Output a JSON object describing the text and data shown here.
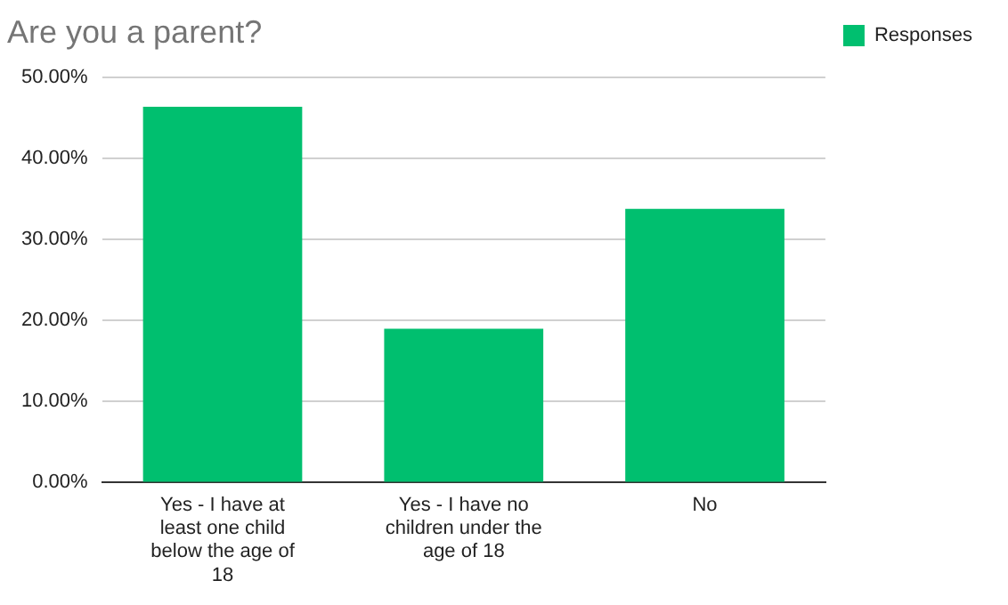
{
  "chart_data": {
    "type": "bar",
    "title": "Are you a parent?",
    "categories": [
      "Yes - I have at least one child below the age of 18",
      "Yes - I have no children under the age of 18",
      "No"
    ],
    "series": [
      {
        "name": "Responses",
        "color": "#00bf6f",
        "values": [
          46.4,
          19.0,
          33.8
        ]
      }
    ],
    "ylim": [
      0,
      50
    ],
    "yticks": [
      {
        "value": 0,
        "label": "0.00%"
      },
      {
        "value": 10,
        "label": "10.00%"
      },
      {
        "value": 20,
        "label": "20.00%"
      },
      {
        "value": 30,
        "label": "30.00%"
      },
      {
        "value": 40,
        "label": "40.00%"
      },
      {
        "value": 50,
        "label": "50.00%"
      }
    ],
    "grid": "y",
    "legend": "top right"
  }
}
